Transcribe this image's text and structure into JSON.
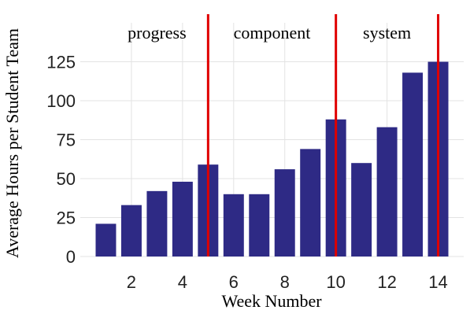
{
  "chart_data": {
    "type": "bar",
    "x": [
      1,
      2,
      3,
      4,
      5,
      6,
      7,
      8,
      9,
      10,
      11,
      12,
      13,
      14
    ],
    "values": [
      21,
      33,
      42,
      48,
      59,
      40,
      40,
      56,
      69,
      88,
      60,
      83,
      118,
      125
    ],
    "xlabel": "Week Number",
    "ylabel": "Average Hours per Student Team",
    "xlim": [
      0,
      15
    ],
    "ylim": [
      0,
      150
    ],
    "xticks": [
      2,
      4,
      6,
      8,
      10,
      12,
      14
    ],
    "yticks": [
      0,
      25,
      50,
      75,
      100,
      125
    ],
    "grid": true,
    "bar_color": "#2e2a85",
    "vertical_lines": [
      5,
      10,
      14
    ],
    "vertical_line_color": "#e00000",
    "phase_labels": [
      {
        "text": "progress",
        "x": 3
      },
      {
        "text": "component",
        "x": 7.5
      },
      {
        "text": "system",
        "x": 12
      }
    ]
  }
}
